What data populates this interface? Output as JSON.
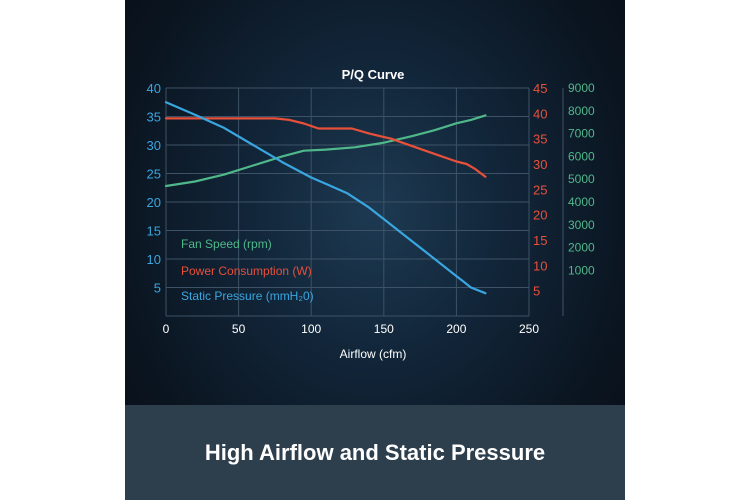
{
  "banner": {
    "text": "High Airflow and Static Pressure"
  },
  "chart_data": {
    "type": "line",
    "title": "P/Q Curve",
    "xlabel": "Airflow (cfm)",
    "xlim": [
      0,
      250
    ],
    "x_ticks": [
      "0",
      "50",
      "100",
      "150",
      "200",
      "250"
    ],
    "grid": true,
    "legend_position": "left-middle",
    "axes": {
      "left": {
        "range": [
          0,
          40
        ],
        "ticks": [
          "5",
          "10",
          "15",
          "20",
          "25",
          "30",
          "35",
          "40"
        ],
        "color": "#3aa6e0"
      },
      "right1": {
        "range": [
          0,
          45
        ],
        "ticks": [
          "5",
          "10",
          "15",
          "20",
          "25",
          "30",
          "35",
          "40",
          "45"
        ],
        "color": "#e8503a"
      },
      "right2": {
        "range": [
          -1000,
          9000
        ],
        "ticks": [
          "1000",
          "2000",
          "3000",
          "4000",
          "5000",
          "6000",
          "7000",
          "8000",
          "9000"
        ],
        "color": "#4fb88a"
      }
    },
    "series": [
      {
        "name": "Fan Speed (rpm)",
        "axis": "right2",
        "color": "#4fb88a",
        "x": [
          0,
          20,
          40,
          60,
          80,
          95,
          110,
          130,
          150,
          170,
          185,
          200,
          210,
          220
        ],
        "y": [
          4700,
          4900,
          5200,
          5600,
          6000,
          6250,
          6300,
          6400,
          6600,
          6900,
          7150,
          7450,
          7600,
          7800
        ]
      },
      {
        "name": "Power Consumption (W)",
        "axis": "right1",
        "color": "#e8503a",
        "x": [
          0,
          20,
          40,
          60,
          75,
          85,
          95,
          105,
          110,
          120,
          128,
          140,
          155,
          170,
          185,
          200,
          207,
          213,
          220
        ],
        "y": [
          39,
          39,
          39,
          39,
          39,
          38.7,
          38,
          37,
          37,
          37,
          37,
          36,
          35,
          33.5,
          32,
          30.5,
          30,
          29,
          27.5
        ]
      },
      {
        "name": "Static Pressure (mmH₂0)",
        "axis": "left",
        "color": "#3aa6e0",
        "x": [
          0,
          20,
          40,
          60,
          80,
          100,
          110,
          125,
          140,
          160,
          180,
          200,
          205,
          210,
          220
        ],
        "y": [
          37.5,
          35.3,
          33,
          30,
          27,
          24.3,
          23.2,
          21.5,
          19,
          15,
          11,
          7,
          6,
          5,
          4
        ]
      }
    ]
  }
}
